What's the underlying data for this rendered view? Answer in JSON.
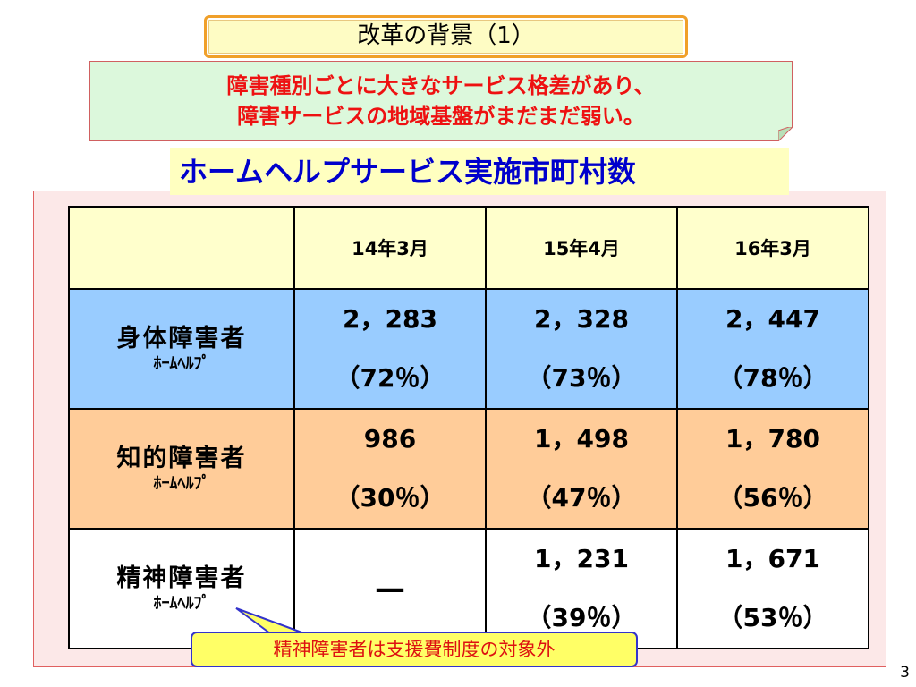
{
  "slide": {
    "title": "改革の背景（1）",
    "note_line1": "障害種別ごとに大きなサービス格差があり、",
    "note_line2": "障害サービスの地域基盤がまだまだ弱い。",
    "subtitle": "ホームヘルプサービス実施市町村数",
    "page_number": "3"
  },
  "table": {
    "headers": [
      "",
      "14年3月",
      "15年4月",
      "16年3月"
    ],
    "rows": [
      {
        "label": "身体障害者",
        "sublabel": "ﾎｰﾑﾍﾙﾌﾟ",
        "cells": [
          {
            "value": "2，283",
            "percent": "（72％）"
          },
          {
            "value": "2，328",
            "percent": "（73％）"
          },
          {
            "value": "2，447",
            "percent": "（78％）"
          }
        ]
      },
      {
        "label": "知的障害者",
        "sublabel": "ﾎｰﾑﾍﾙﾌﾟ",
        "cells": [
          {
            "value": "986",
            "percent": "（30％）"
          },
          {
            "value": "1，498",
            "percent": "（47％）"
          },
          {
            "value": "1，780",
            "percent": "（56％）"
          }
        ]
      },
      {
        "label": "精神障害者",
        "sublabel": "ﾎｰﾑﾍﾙﾌﾟ",
        "cells": [
          {
            "value": "—",
            "percent": ""
          },
          {
            "value": "1，231",
            "percent": "（39％）"
          },
          {
            "value": "1，671",
            "percent": "（53％）"
          }
        ]
      }
    ]
  },
  "callout": "精神障害者は支援費制度の対象外",
  "colors": {
    "title_border": "#f0a02a",
    "note_text": "#ee1111",
    "subtitle_text": "#0000cc",
    "row_physical": "#99ccff",
    "row_intellectual": "#ffcc99",
    "header_bg": "#ffffcc"
  }
}
